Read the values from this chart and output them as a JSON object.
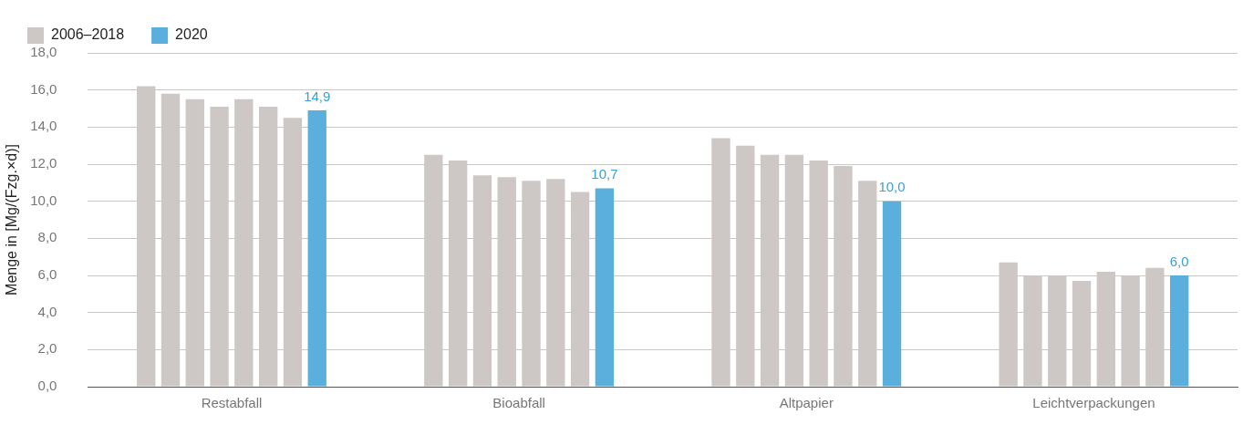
{
  "chart_data": {
    "type": "bar",
    "ylabel": "Menge in [Mg/(Fzg.×d)]",
    "categories": [
      "Restabfall",
      "Bioabfall",
      "Altpapier",
      "Leichtverpackungen"
    ],
    "series": [
      {
        "name": "2006–2018",
        "color": "#cdc7c5",
        "values": [
          16.2,
          12.5,
          13.4,
          6.7
        ]
      },
      {
        "color": "#cdc7c5",
        "values": [
          15.8,
          12.2,
          13.0,
          6.0
        ]
      },
      {
        "color": "#cdc7c5",
        "values": [
          15.5,
          11.4,
          12.5,
          6.0
        ]
      },
      {
        "color": "#cdc7c5",
        "values": [
          15.1,
          11.3,
          12.5,
          5.7
        ]
      },
      {
        "color": "#cdc7c5",
        "values": [
          15.5,
          11.1,
          12.2,
          6.2
        ]
      },
      {
        "color": "#cdc7c5",
        "values": [
          15.1,
          11.2,
          11.9,
          6.0
        ]
      },
      {
        "color": "#cdc7c5",
        "values": [
          14.5,
          10.5,
          11.1,
          6.4
        ]
      },
      {
        "name": "2020",
        "color": "#5aafdc",
        "values": [
          14.9,
          10.7,
          10.0,
          6.0
        ],
        "value_labels": [
          "14,9",
          "10,7",
          "10,0",
          "6,0"
        ]
      }
    ],
    "ylim": [
      0,
      18
    ],
    "yticks": [
      {
        "value": 0,
        "label": "0,0"
      },
      {
        "value": 2,
        "label": "2,0"
      },
      {
        "value": 4,
        "label": "4,0"
      },
      {
        "value": 6,
        "label": "6,0"
      },
      {
        "value": 8,
        "label": "8,0"
      },
      {
        "value": 10,
        "label": "10,0"
      },
      {
        "value": 12,
        "label": "12,0"
      },
      {
        "value": 14,
        "label": "14,0"
      },
      {
        "value": 16,
        "label": "16,0"
      },
      {
        "value": 18,
        "label": "18,0"
      }
    ],
    "grid": "y",
    "legend": "top left"
  }
}
